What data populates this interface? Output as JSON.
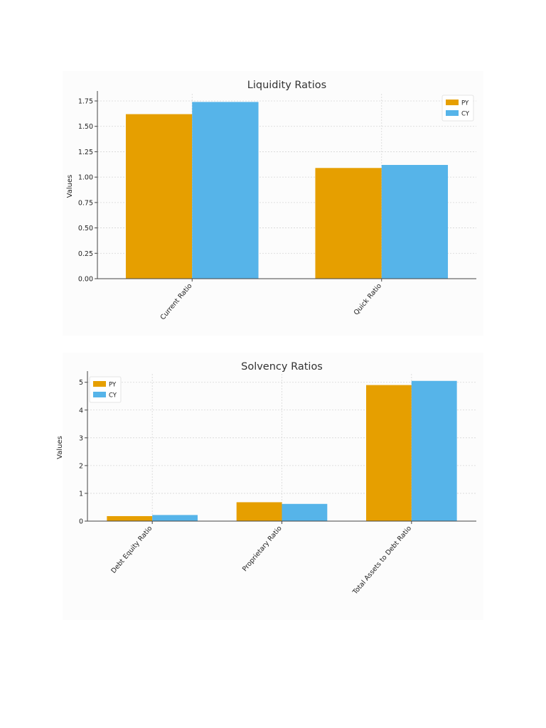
{
  "series_colors": {
    "PY": "#E69F00",
    "CY": "#56B4E9"
  },
  "chart_data": [
    {
      "type": "bar",
      "title": "Liquidity Ratios",
      "xlabel": "",
      "ylabel": "Values",
      "categories": [
        "Current Ratio",
        "Quick Ratio"
      ],
      "series": [
        {
          "name": "PY",
          "values": [
            1.62,
            1.09
          ]
        },
        {
          "name": "CY",
          "values": [
            1.74,
            1.12
          ]
        }
      ],
      "ylim": [
        0,
        1.82
      ],
      "yticks": [
        "0.00",
        "0.25",
        "0.50",
        "0.75",
        "1.00",
        "1.25",
        "1.50",
        "1.75"
      ],
      "grid": true,
      "legend": "top-right"
    },
    {
      "type": "bar",
      "title": "Solvency Ratios",
      "xlabel": "",
      "ylabel": "Values",
      "categories": [
        "Debt Equity Ratio",
        "Proprietary Ratio",
        "Total Assets to Debt Ratio"
      ],
      "series": [
        {
          "name": "PY",
          "values": [
            0.18,
            0.68,
            4.9
          ]
        },
        {
          "name": "CY",
          "values": [
            0.22,
            0.62,
            5.05
          ]
        }
      ],
      "ylim": [
        0,
        5.3
      ],
      "yticks": [
        "0",
        "1",
        "2",
        "3",
        "4",
        "5"
      ],
      "grid": true,
      "legend": "top-left"
    }
  ]
}
